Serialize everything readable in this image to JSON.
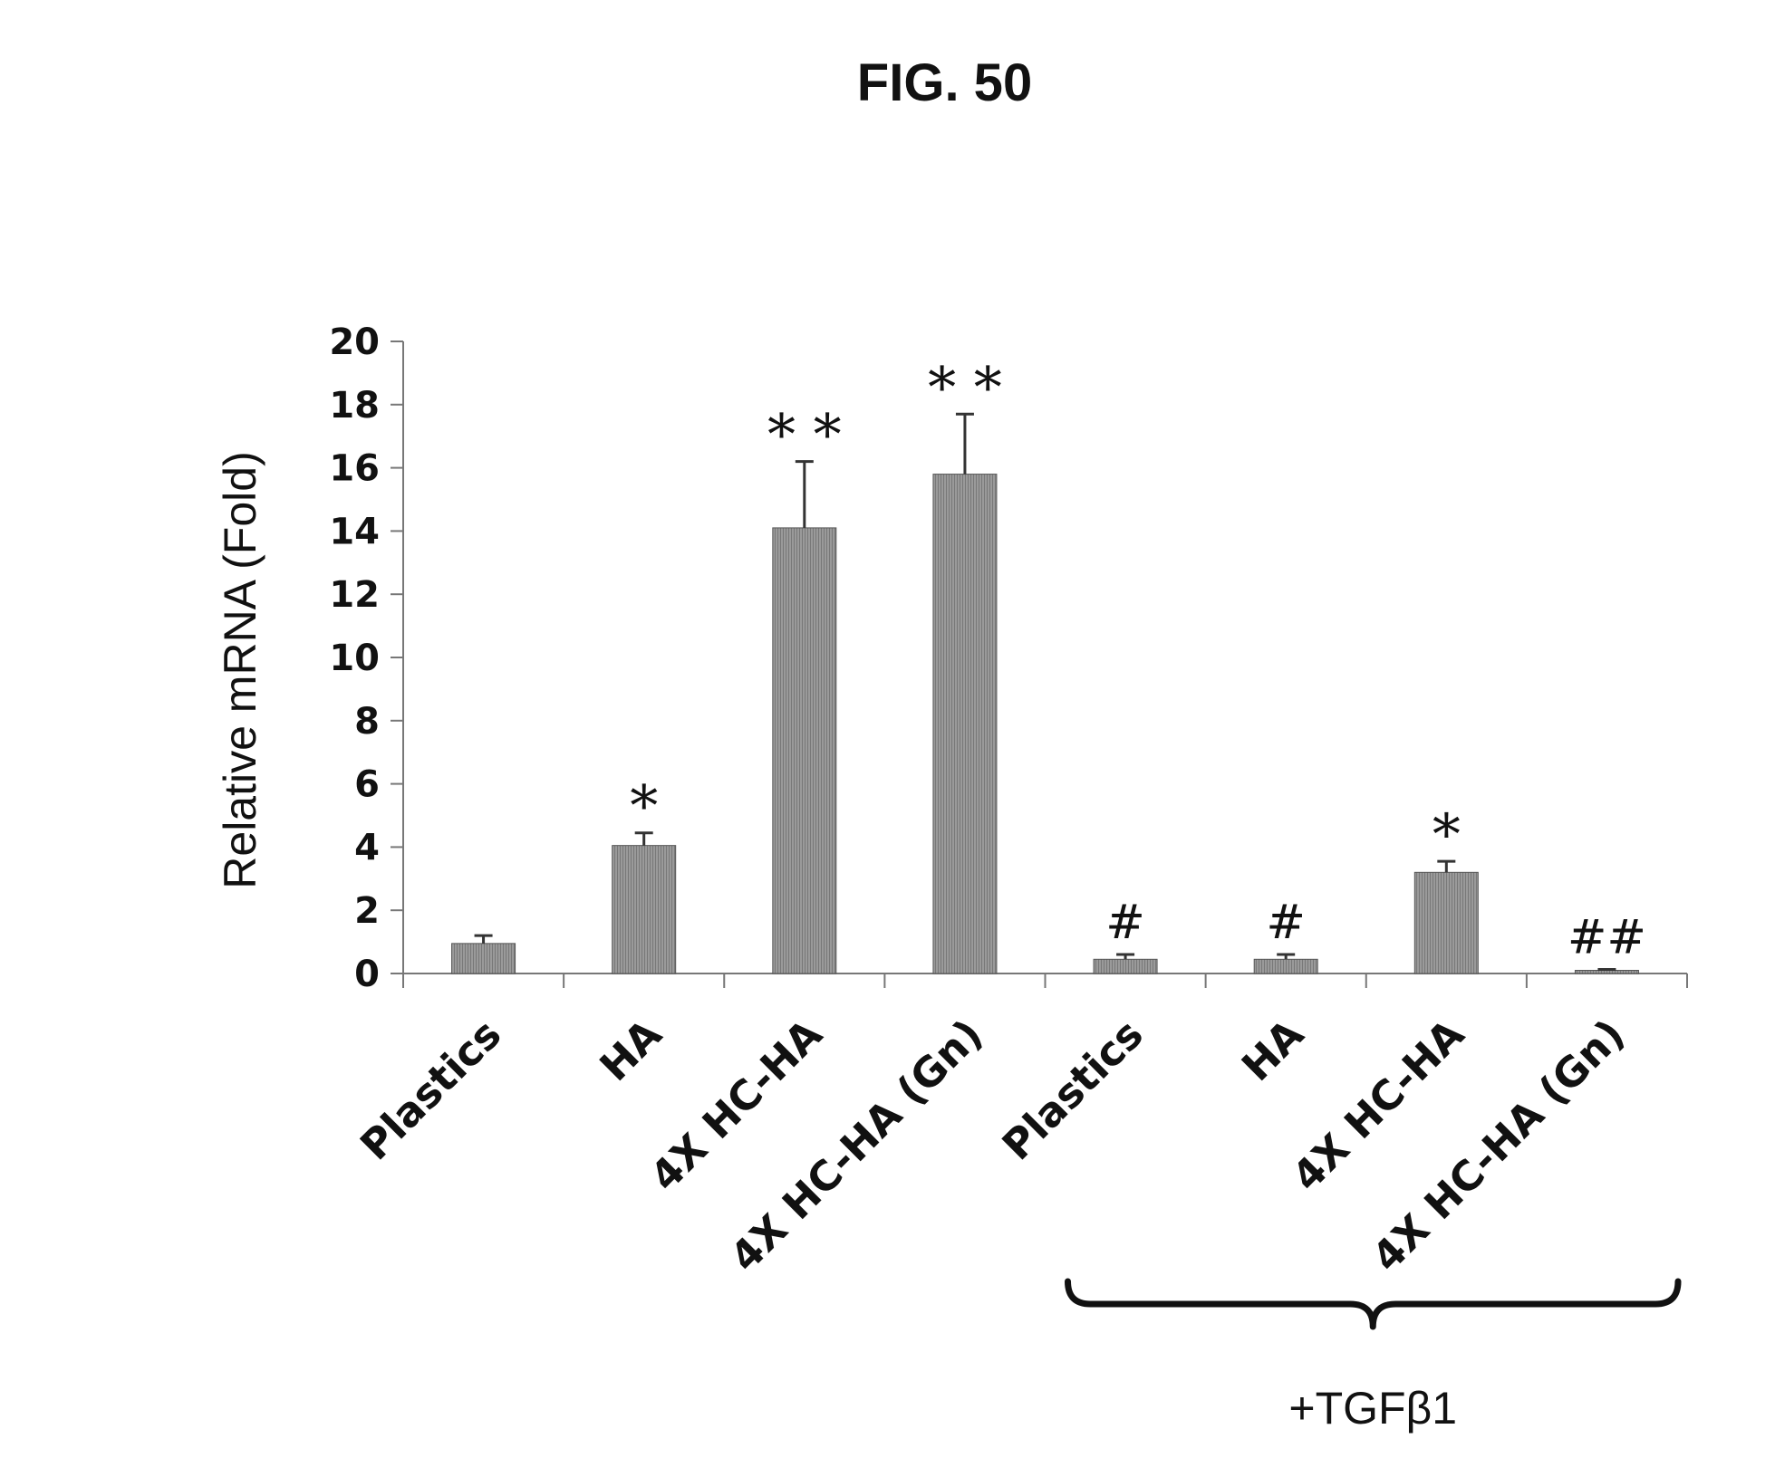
{
  "figure": {
    "title": "FIG. 50"
  },
  "chart_data": {
    "type": "bar",
    "ylabel": "Relative mRNA (Fold)",
    "xlabel": "",
    "ylim": [
      0,
      20
    ],
    "yticks": [
      0,
      2,
      4,
      6,
      8,
      10,
      12,
      14,
      16,
      18,
      20
    ],
    "categories": [
      "Plastics",
      "HA",
      "4X HC-HA",
      "4X HC-HA (Gn)",
      "Plastics",
      "HA",
      "4X HC-HA",
      "4X HC-HA (Gn)"
    ],
    "values": [
      0.95,
      4.05,
      14.1,
      15.8,
      0.45,
      0.45,
      3.2,
      0.1
    ],
    "errors": [
      0.25,
      0.4,
      2.1,
      1.9,
      0.15,
      0.15,
      0.35,
      0.03
    ],
    "annotations": [
      "",
      "*",
      "* *",
      "* *",
      "#",
      "#",
      "*",
      "##"
    ],
    "group": {
      "label": "+TGFβ1",
      "from_index": 4,
      "to_index": 7
    },
    "bar_color": "#8c8c8c",
    "grid": false
  }
}
